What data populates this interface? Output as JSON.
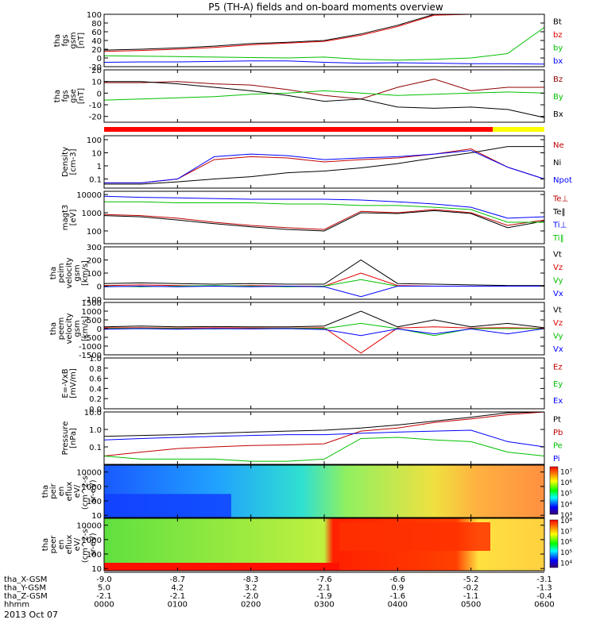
{
  "title": "P5 (TH-A) fields and on-board moments overview",
  "date_label": "2013 Oct 07",
  "chart_data": [
    {
      "type": "line",
      "panel": "fgs_gsm",
      "ylabel_lines": [
        "tha",
        "fgs",
        "gsm",
        "[nT]"
      ],
      "ylim": [
        -20,
        100
      ],
      "yticks": [
        -20,
        0,
        20,
        40,
        60,
        80,
        100
      ],
      "x": [
        0,
        0.5,
        1,
        1.5,
        2,
        2.5,
        3,
        3.5,
        4,
        4.5,
        5,
        5.5,
        6
      ],
      "series": [
        {
          "name": "Bt",
          "color": "#000000",
          "values": [
            18,
            20,
            23,
            27,
            33,
            36,
            40,
            55,
            75,
            100,
            100,
            100,
            100
          ]
        },
        {
          "name": "bz",
          "color": "#e00000",
          "values": [
            15,
            17,
            20,
            24,
            30,
            34,
            38,
            52,
            72,
            98,
            100,
            100,
            100
          ]
        },
        {
          "name": "by",
          "color": "#00c000",
          "values": [
            5,
            4,
            3,
            2,
            1,
            0,
            2,
            -3,
            -5,
            -3,
            0,
            10,
            70
          ]
        },
        {
          "name": "bx",
          "color": "#0000ff",
          "values": [
            -10,
            -9,
            -9,
            -8,
            -7,
            -7,
            -10,
            -12,
            -11,
            -12,
            -13,
            -13,
            -14
          ]
        }
      ]
    },
    {
      "type": "line",
      "panel": "fgs_gse",
      "ylabel_lines": [
        "tha",
        "fgs",
        "gse",
        "[nT]"
      ],
      "ylim": [
        -25,
        20
      ],
      "yticks": [
        -20,
        -10,
        0,
        10,
        20
      ],
      "x": [
        0,
        0.5,
        1,
        1.5,
        2,
        2.5,
        3,
        3.5,
        4,
        4.5,
        5,
        5.5,
        6
      ],
      "series": [
        {
          "name": "Bz",
          "color": "#900000",
          "values": [
            9,
            9,
            10,
            8,
            7,
            3,
            -2,
            -5,
            5,
            12,
            2,
            5,
            5
          ]
        },
        {
          "name": "By",
          "color": "#00c000",
          "values": [
            -6,
            -5,
            -4,
            -3,
            -1,
            0,
            2,
            0,
            -2,
            -1,
            0,
            1,
            0
          ]
        },
        {
          "name": "Bx",
          "color": "#000000",
          "values": [
            10,
            10,
            8,
            5,
            2,
            -2,
            -7,
            -5,
            -12,
            -13,
            -12,
            -14,
            -21
          ]
        }
      ]
    },
    {
      "type": "line",
      "panel": "density",
      "ylabel_lines": [
        "Density",
        "[cm-3]"
      ],
      "ylog": true,
      "ylim": [
        0.02,
        200
      ],
      "yticks": [
        0.1,
        1,
        10,
        100
      ],
      "ytick_labels": [
        "0.1",
        "1",
        "10",
        "100"
      ],
      "x": [
        0,
        0.5,
        1,
        1.5,
        2,
        2.5,
        3,
        3.5,
        4,
        4.5,
        5,
        5.5,
        6
      ],
      "series": [
        {
          "name": "Ne",
          "color": "#c00000",
          "values": [
            0.05,
            0.05,
            0.1,
            3,
            5,
            4,
            2,
            3,
            4,
            8,
            20,
            0.8,
            0.1
          ]
        },
        {
          "name": "Ni",
          "color": "#000000",
          "values": [
            0.04,
            0.04,
            0.06,
            0.1,
            0.15,
            0.3,
            0.4,
            0.7,
            1.5,
            4,
            10,
            30,
            30
          ]
        },
        {
          "name": "Npot",
          "color": "#0000ff",
          "values": [
            0.05,
            0.05,
            0.1,
            5,
            8,
            6,
            3,
            4,
            5,
            8,
            15,
            0.8,
            0.1
          ]
        }
      ]
    },
    {
      "type": "line",
      "panel": "temperature",
      "ylabel_lines": [
        "magt3",
        "[eV]"
      ],
      "ylog": true,
      "ylim": [
        20,
        15000
      ],
      "yticks": [
        100,
        1000,
        10000
      ],
      "ytick_labels": [
        "100",
        "1000",
        "10000"
      ],
      "x": [
        0,
        0.5,
        1,
        1.5,
        2,
        2.5,
        3,
        3.5,
        4,
        4.5,
        5,
        5.5,
        6
      ],
      "series": [
        {
          "name": "Te⊥",
          "color": "#c00000",
          "values": [
            800,
            700,
            500,
            300,
            200,
            150,
            120,
            1200,
            1000,
            1500,
            1000,
            200,
            400
          ]
        },
        {
          "name": "Te‖",
          "color": "#000000",
          "values": [
            700,
            600,
            400,
            250,
            170,
            120,
            100,
            1000,
            900,
            1300,
            900,
            150,
            350
          ]
        },
        {
          "name": "Ti⊥",
          "color": "#0000ff",
          "values": [
            8000,
            7000,
            6500,
            6000,
            5500,
            5500,
            5500,
            5000,
            4000,
            3000,
            2000,
            500,
            600
          ]
        },
        {
          "name": "Ti‖",
          "color": "#00c000",
          "values": [
            4000,
            4000,
            3500,
            3500,
            3500,
            3000,
            3000,
            2500,
            2500,
            2000,
            1500,
            300,
            300
          ]
        }
      ]
    },
    {
      "type": "line",
      "panel": "peim_velocity",
      "ylabel_lines": [
        "tha",
        "peim",
        "velocity",
        "gsm",
        "[km/s]"
      ],
      "ylim": [
        -100,
        300
      ],
      "yticks": [
        -100,
        0,
        100,
        200,
        300
      ],
      "x": [
        0,
        0.5,
        1,
        1.5,
        2,
        2.5,
        3,
        3.5,
        4,
        4.5,
        5,
        5.5,
        6
      ],
      "series": [
        {
          "name": "Vt",
          "color": "#000000",
          "values": [
            20,
            25,
            20,
            15,
            20,
            15,
            15,
            200,
            20,
            15,
            10,
            5,
            5
          ]
        },
        {
          "name": "Vz",
          "color": "#e00000",
          "values": [
            5,
            10,
            5,
            0,
            5,
            0,
            0,
            100,
            5,
            0,
            0,
            0,
            0
          ]
        },
        {
          "name": "Vy",
          "color": "#00c000",
          "values": [
            0,
            -5,
            0,
            5,
            0,
            -5,
            0,
            50,
            0,
            0,
            0,
            0,
            0
          ]
        },
        {
          "name": "Vx",
          "color": "#0000ff",
          "values": [
            -5,
            0,
            -5,
            0,
            -5,
            0,
            -5,
            -80,
            0,
            0,
            0,
            0,
            0
          ]
        }
      ]
    },
    {
      "type": "line",
      "panel": "peem_velocity",
      "ylabel_lines": [
        "tha",
        "peem",
        "velocity",
        "gsm",
        "[km/s]"
      ],
      "ylim": [
        -1500,
        1500
      ],
      "yticks": [
        -1500,
        -1000,
        -500,
        0,
        500,
        1000,
        1500
      ],
      "x": [
        0,
        0.5,
        1,
        1.5,
        2,
        2.5,
        3,
        3.5,
        4,
        4.5,
        5,
        5.5,
        6
      ],
      "series": [
        {
          "name": "Vt",
          "color": "#000000",
          "values": [
            100,
            150,
            100,
            120,
            100,
            100,
            150,
            1000,
            100,
            500,
            100,
            300,
            50
          ]
        },
        {
          "name": "Vz",
          "color": "#e00000",
          "values": [
            50,
            50,
            30,
            50,
            40,
            30,
            50,
            -1400,
            30,
            100,
            30,
            50,
            20
          ]
        },
        {
          "name": "Vy",
          "color": "#00c000",
          "values": [
            0,
            20,
            0,
            -20,
            0,
            20,
            0,
            300,
            0,
            -400,
            0,
            0,
            0
          ]
        },
        {
          "name": "Vx",
          "color": "#0000ff",
          "values": [
            -30,
            0,
            -30,
            0,
            -20,
            0,
            -50,
            -400,
            -20,
            -300,
            -20,
            -300,
            0
          ]
        }
      ]
    },
    {
      "type": "line",
      "panel": "efield",
      "ylabel_lines": [
        "E=-VxB",
        "[mV/m]"
      ],
      "ylim": [
        0,
        1
      ],
      "yticks": [
        0,
        0.2,
        0.4,
        0.6,
        0.8,
        1.0
      ],
      "ytick_labels": [
        "0.0",
        "0.2",
        "0.4",
        "0.6",
        "0.8",
        "1.0"
      ],
      "series": [
        {
          "name": "Ez",
          "color": "#c00000",
          "values": []
        },
        {
          "name": "Ey",
          "color": "#00c000",
          "values": []
        },
        {
          "name": "Ex",
          "color": "#0000ff",
          "values": []
        }
      ]
    },
    {
      "type": "line",
      "panel": "pressure",
      "ylabel_lines": [
        "Pressure",
        "[nPa]"
      ],
      "ylog": true,
      "ylim": [
        0.01,
        10
      ],
      "yticks": [
        0.1,
        1,
        10
      ],
      "ytick_labels": [
        "0.1",
        "1.0",
        "10.0"
      ],
      "x": [
        0,
        0.5,
        1,
        1.5,
        2,
        2.5,
        3,
        3.5,
        4,
        4.5,
        5,
        5.5,
        6
      ],
      "series": [
        {
          "name": "Pt",
          "color": "#000000",
          "values": [
            0.4,
            0.45,
            0.5,
            0.6,
            0.7,
            0.8,
            0.9,
            1.2,
            1.8,
            3,
            5,
            9,
            10
          ]
        },
        {
          "name": "Pb",
          "color": "#c00000",
          "values": [
            0.03,
            0.05,
            0.08,
            0.1,
            0.12,
            0.13,
            0.15,
            0.8,
            1.2,
            2.5,
            4,
            7,
            10
          ]
        },
        {
          "name": "Pe",
          "color": "#00c000",
          "values": [
            0.03,
            0.02,
            0.02,
            0.02,
            0.015,
            0.015,
            0.02,
            0.3,
            0.35,
            0.25,
            0.2,
            0.05,
            0.03
          ]
        },
        {
          "name": "Pi",
          "color": "#0000ff",
          "values": [
            0.25,
            0.3,
            0.35,
            0.4,
            0.45,
            0.5,
            0.5,
            0.6,
            0.7,
            0.8,
            0.9,
            0.2,
            0.1
          ]
        }
      ]
    },
    {
      "type": "heatmap",
      "panel": "peir_spectrogram",
      "ylabel_lines": [
        "tha",
        "peir",
        "en",
        "eflux",
        "eV/",
        "(cm^2-s-",
        "sr-eV)"
      ],
      "ylog": true,
      "ylim": [
        7,
        30000
      ],
      "yticks": [
        10,
        100,
        1000,
        10000
      ],
      "ytick_labels": [
        "10",
        "100",
        "1000",
        "10000"
      ],
      "colorbar_ticks": [
        "10³",
        "10⁴",
        "10⁵",
        "10⁶",
        "10⁷"
      ],
      "colorbar_range": [
        3,
        7.4
      ]
    },
    {
      "type": "heatmap",
      "panel": "peer_spectrogram",
      "ylabel_lines": [
        "tha",
        "peer",
        "en",
        "eflux",
        "eV/",
        "(cm^2-s-",
        "sr-eV)"
      ],
      "ylog": true,
      "ylim": [
        7,
        30000
      ],
      "yticks": [
        10,
        100,
        1000,
        10000
      ],
      "ytick_labels": [
        "10",
        "100",
        "1000",
        "10000"
      ],
      "colorbar_ticks": [
        "10⁴",
        "10⁵",
        "10⁶",
        "10⁷",
        "10⁸"
      ],
      "colorbar_range": [
        3.5,
        8
      ]
    }
  ],
  "footer": {
    "xlim": [
      0,
      6
    ],
    "rows": [
      {
        "label": "tha_X-GSM",
        "values": [
          "-9.0",
          "-8.7",
          "-8.3",
          "-7.6",
          "-6.6",
          "-5.2",
          "-3.1"
        ]
      },
      {
        "label": "tha_Y-GSM",
        "values": [
          "5.0",
          "4.2",
          "3.2",
          "2.1",
          "0.9",
          "-0.2",
          "-1.3"
        ]
      },
      {
        "label": "tha_Z-GSM",
        "values": [
          "-2.1",
          "-2.1",
          "-2.0",
          "-1.9",
          "-1.6",
          "-1.1",
          "-0.4"
        ]
      },
      {
        "label": "hhmm",
        "values": [
          "0000",
          "0100",
          "0200",
          "0300",
          "0400",
          "0500",
          "0600"
        ]
      }
    ]
  }
}
